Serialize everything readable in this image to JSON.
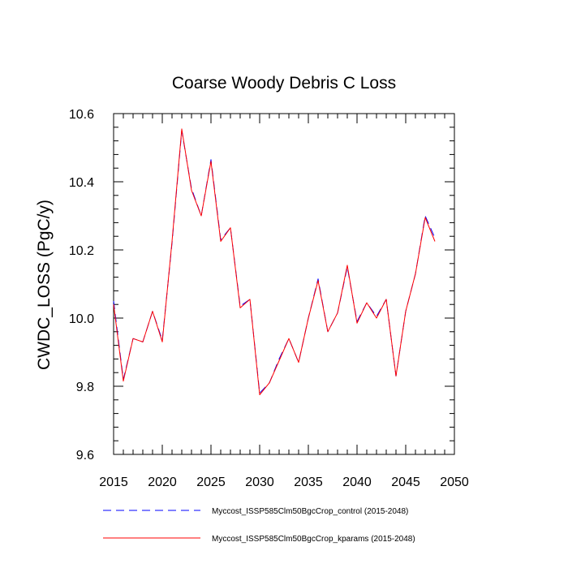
{
  "chart_data": {
    "type": "line",
    "title": "Coarse Woody Debris C Loss",
    "xlabel": "",
    "ylabel": "CWDC_LOSS  (PgC/y)",
    "xlim": [
      2015,
      2050
    ],
    "ylim": [
      9.6,
      10.6
    ],
    "xticks": [
      2015,
      2020,
      2025,
      2030,
      2035,
      2040,
      2045,
      2050
    ],
    "yticks": [
      9.6,
      9.8,
      10.0,
      10.2,
      10.4,
      10.6
    ],
    "ytick_labels": [
      "9.6",
      "9.8",
      "10.0",
      "10.2",
      "10.4",
      "10.6"
    ],
    "grid": false,
    "legend_position": "bottom",
    "x": [
      2015,
      2016,
      2017,
      2018,
      2019,
      2020,
      2021,
      2022,
      2023,
      2024,
      2025,
      2026,
      2027,
      2028,
      2029,
      2030,
      2031,
      2032,
      2033,
      2034,
      2035,
      2036,
      2037,
      2038,
      2039,
      2040,
      2041,
      2042,
      2043,
      2044,
      2045,
      2046,
      2047,
      2048
    ],
    "series": [
      {
        "name": "Myccost_ISSP585Clm50BgcCrop_control (2015-2048)",
        "color": "#0000ff",
        "dash": "dashed",
        "values": [
          10.05,
          9.82,
          9.94,
          9.93,
          10.02,
          9.935,
          10.22,
          10.55,
          10.38,
          10.3,
          10.465,
          10.23,
          10.265,
          10.035,
          10.055,
          9.78,
          9.81,
          9.88,
          9.94,
          9.87,
          10.0,
          10.115,
          9.96,
          10.015,
          10.15,
          9.99,
          10.045,
          10.005,
          10.055,
          9.83,
          10.02,
          10.13,
          10.3,
          10.235
        ]
      },
      {
        "name": "Myccost_ISSP585Clm50BgcCrop_kparams (2015-2048)",
        "color": "#ff0000",
        "dash": "solid",
        "values": [
          10.04,
          9.815,
          9.94,
          9.93,
          10.02,
          9.93,
          10.225,
          10.555,
          10.375,
          10.3,
          10.46,
          10.225,
          10.265,
          10.03,
          10.055,
          9.775,
          9.81,
          9.875,
          9.94,
          9.87,
          10.0,
          10.11,
          9.96,
          10.015,
          10.155,
          9.985,
          10.045,
          10.0,
          10.055,
          9.83,
          10.02,
          10.13,
          10.295,
          10.225
        ]
      }
    ]
  }
}
